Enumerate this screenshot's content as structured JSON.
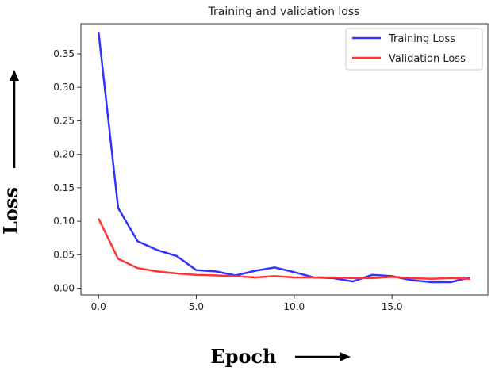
{
  "chart_data": {
    "type": "line",
    "title": "Training and validation loss",
    "xlabel": "Epoch",
    "ylabel": "Loss",
    "xlim": [
      -0.9,
      19.9
    ],
    "ylim": [
      -0.01,
      0.395
    ],
    "xticks": [
      0,
      5,
      10,
      15
    ],
    "xtick_labels": [
      "0.0",
      "5.0",
      "10.0",
      "15.0"
    ],
    "yticks": [
      0,
      0.05,
      0.1,
      0.15,
      0.2,
      0.25,
      0.3,
      0.35
    ],
    "ytick_labels": [
      "0.00",
      "0.05",
      "0.10",
      "0.15",
      "0.20",
      "0.25",
      "0.30",
      "0.35"
    ],
    "grid": false,
    "legend": "top-right",
    "x": [
      0,
      1,
      2,
      3,
      4,
      5,
      6,
      7,
      8,
      9,
      10,
      11,
      12,
      13,
      14,
      15,
      16,
      17,
      18,
      19
    ],
    "series": [
      {
        "name": "Training Loss",
        "color": "#3333ff",
        "values": [
          0.383,
          0.12,
          0.07,
          0.057,
          0.048,
          0.027,
          0.025,
          0.019,
          0.026,
          0.031,
          0.024,
          0.016,
          0.015,
          0.01,
          0.02,
          0.018,
          0.012,
          0.009,
          0.009,
          0.016
        ]
      },
      {
        "name": "Validation Loss",
        "color": "#ff3333",
        "values": [
          0.104,
          0.044,
          0.03,
          0.025,
          0.022,
          0.02,
          0.019,
          0.018,
          0.016,
          0.018,
          0.016,
          0.016,
          0.016,
          0.015,
          0.015,
          0.017,
          0.015,
          0.014,
          0.015,
          0.014
        ]
      }
    ]
  }
}
